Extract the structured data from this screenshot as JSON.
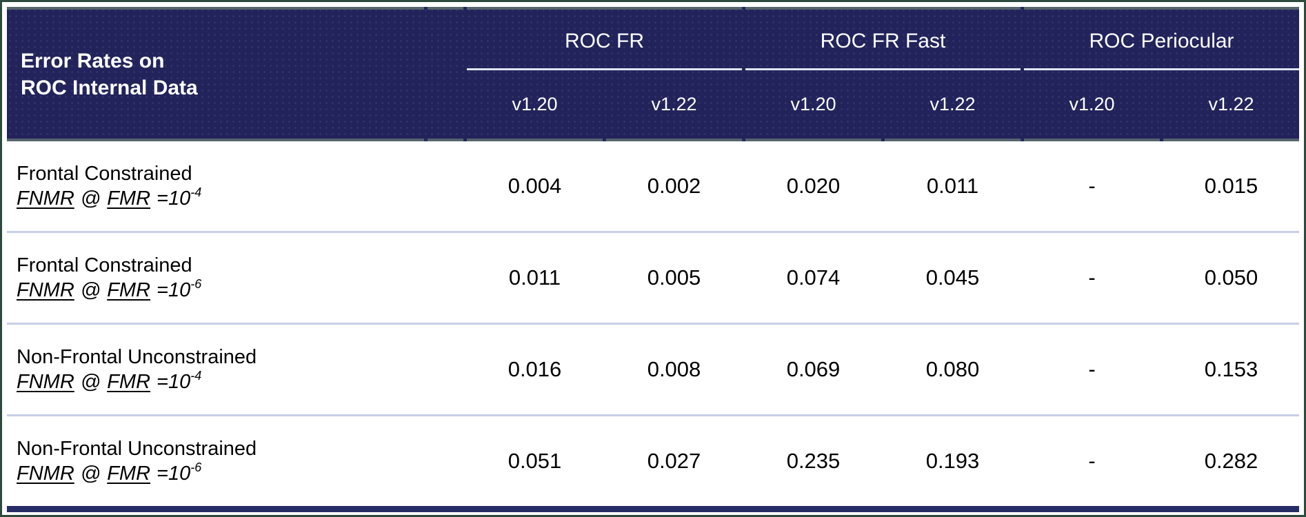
{
  "colors": {
    "header_navy": "#23235B",
    "bottom_bar_navy": "#272D66",
    "slate_border": "#54656C",
    "outer_frame_green": "#2C4A3E",
    "row_divider": "#C7CEE8",
    "group_underline": "#DEE4F6"
  },
  "header": {
    "corner_line1": "Error Rates on",
    "corner_line2": "ROC Internal Data",
    "groups": [
      {
        "label": "ROC FR"
      },
      {
        "label": "ROC FR Fast"
      },
      {
        "label": "ROC Periocular"
      }
    ],
    "versions": [
      "v1.20",
      "v1.22",
      "v1.20",
      "v1.22",
      "v1.20",
      "v1.22"
    ]
  },
  "rows": [
    {
      "title": "Frontal Constrained",
      "metric": {
        "fnmr": "FNMR",
        "at": "@",
        "fmr": "FMR",
        "eq": "=10",
        "exp": "-4"
      },
      "values": [
        "0.004",
        "0.002",
        "0.020",
        "0.011",
        "-",
        "0.015"
      ]
    },
    {
      "title": "Frontal Constrained",
      "metric": {
        "fnmr": "FNMR",
        "at": "@",
        "fmr": "FMR",
        "eq": "=10",
        "exp": "-6"
      },
      "values": [
        "0.011",
        "0.005",
        "0.074",
        "0.045",
        "-",
        "0.050"
      ]
    },
    {
      "title": "Non-Frontal Unconstrained",
      "metric": {
        "fnmr": "FNMR",
        "at": "@",
        "fmr": "FMR",
        "eq": "=10",
        "exp": "-4"
      },
      "values": [
        "0.016",
        "0.008",
        "0.069",
        "0.080",
        "-",
        "0.153"
      ]
    },
    {
      "title": "Non-Frontal Unconstrained",
      "metric": {
        "fnmr": "FNMR",
        "at": "@",
        "fmr": "FMR",
        "eq": "=10",
        "exp": "-6"
      },
      "values": [
        "0.051",
        "0.027",
        "0.235",
        "0.193",
        "-",
        "0.282"
      ]
    }
  ]
}
